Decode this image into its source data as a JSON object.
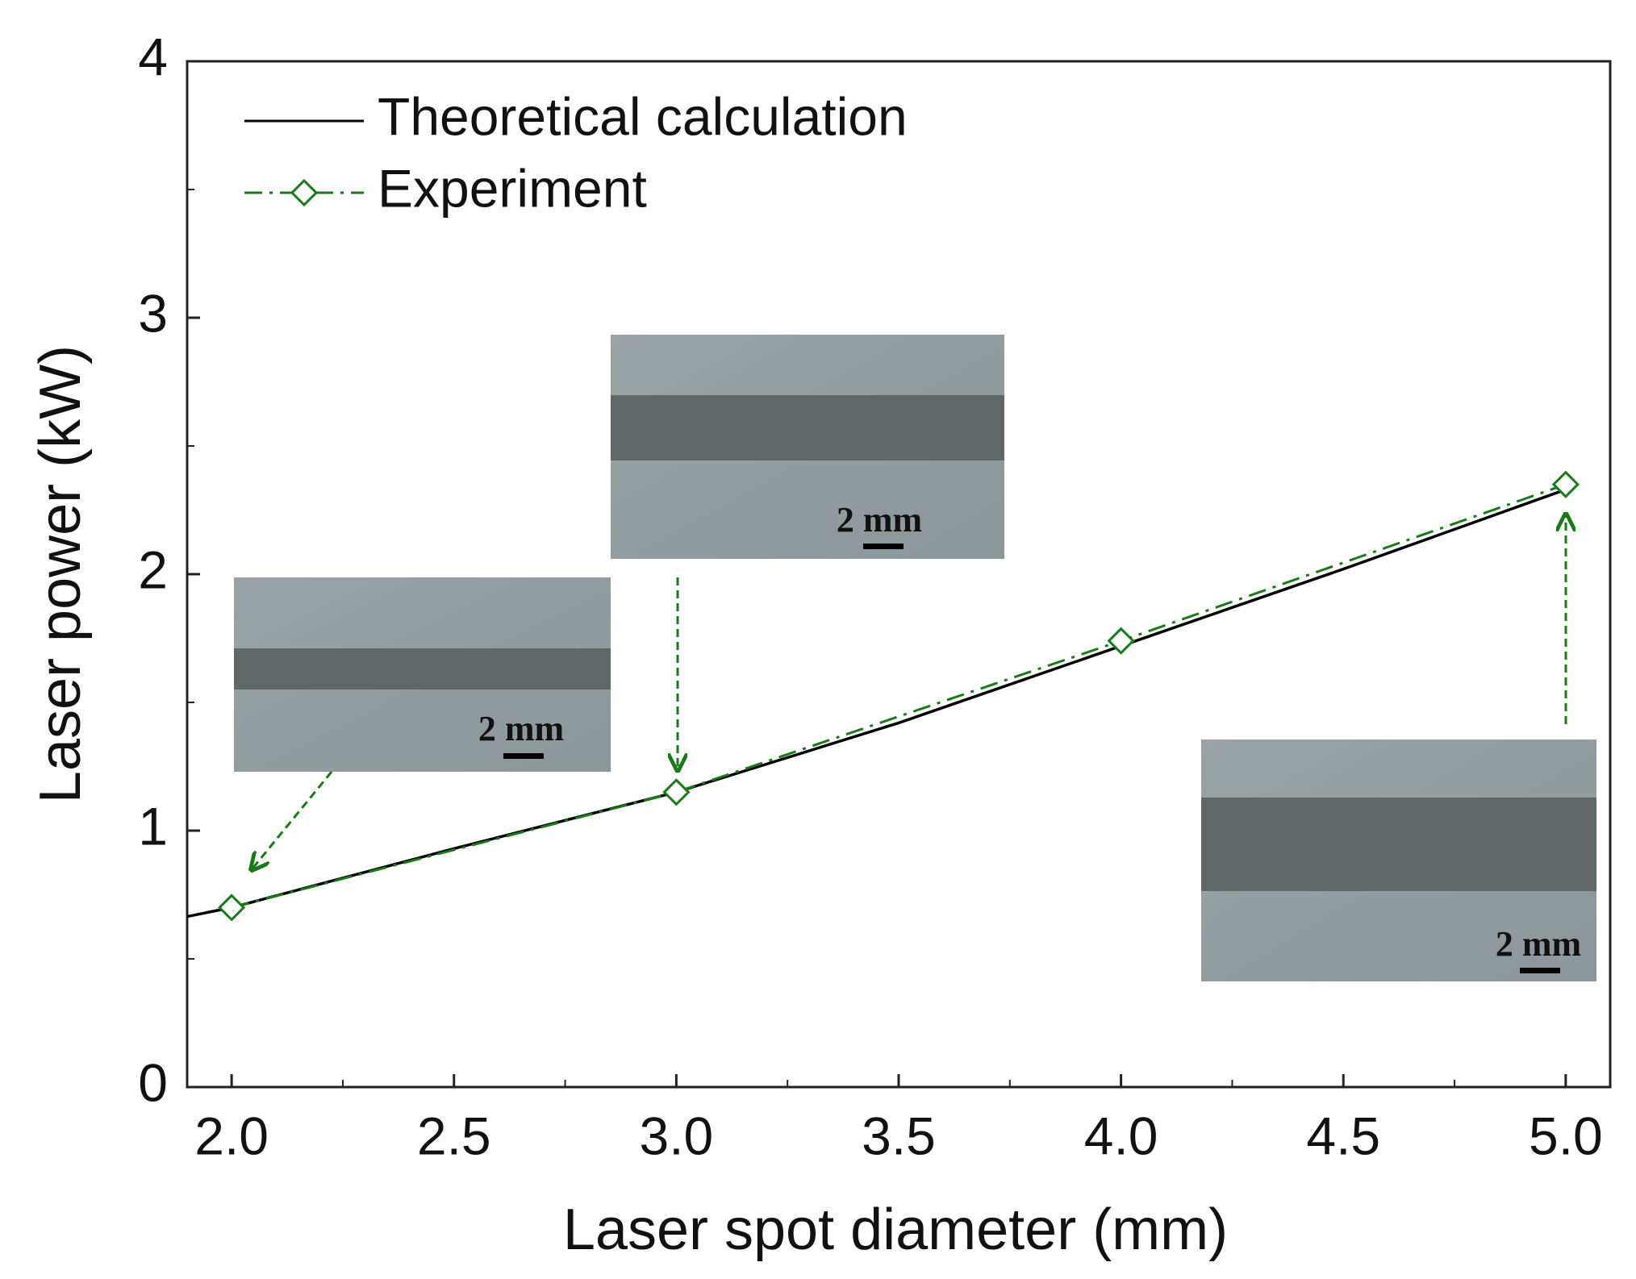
{
  "chart_data": {
    "type": "line",
    "x_label": "Laser spot diameter (mm)",
    "y_label": "Laser power (kW)",
    "xlim": [
      1.9,
      5.1
    ],
    "ylim": [
      0,
      4
    ],
    "xticks": [
      {
        "value": 2,
        "label": "2.0"
      },
      2.5,
      {
        "value": 3,
        "label": "3.0"
      },
      3.5,
      {
        "value": 4,
        "label": "4.0"
      },
      4.5,
      {
        "value": 5,
        "label": "5.0"
      }
    ],
    "yticks": [
      0,
      1,
      2,
      3,
      4
    ],
    "x_minor_ticks": [
      2.25,
      2.75,
      3.25,
      3.75,
      4.25,
      4.75
    ],
    "y_minor_ticks": [
      0.5,
      1.5,
      2.5,
      3.5
    ],
    "series": [
      {
        "name": "Theoretical calculation",
        "color": "#000000",
        "style": "solid",
        "x": [
          1.9,
          2.0,
          2.5,
          3.0,
          3.5,
          4.0,
          4.5,
          5.0
        ],
        "values": [
          0.665,
          0.7,
          0.93,
          1.15,
          1.42,
          1.72,
          2.02,
          2.33
        ]
      },
      {
        "name": "Experiment",
        "color": "#1a7a1a",
        "style": "dashdot",
        "marker": "diamond",
        "x": [
          2.0,
          3.0,
          4.0,
          5.0
        ],
        "values": [
          0.7,
          1.15,
          1.74,
          2.35
        ]
      }
    ],
    "inset_labels": [
      "2 mm",
      "2 mm",
      "2 mm"
    ]
  }
}
